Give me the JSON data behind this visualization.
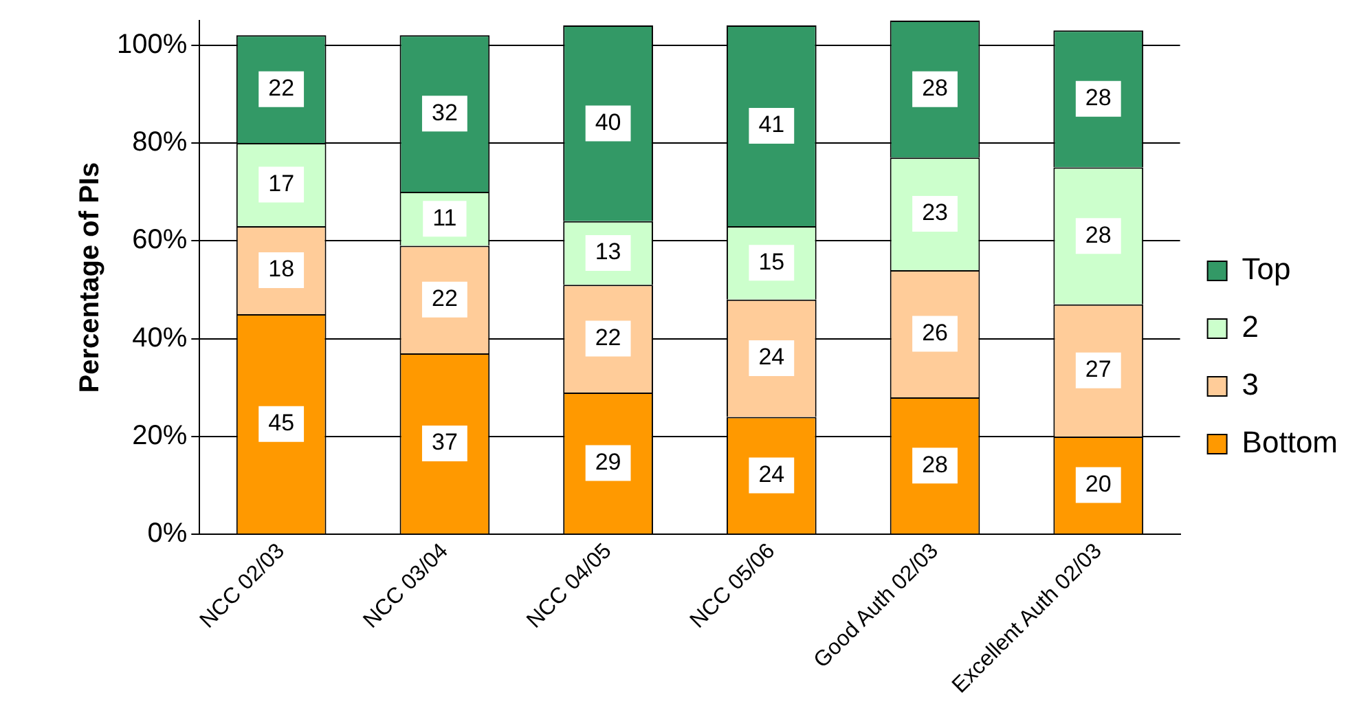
{
  "chart_data": {
    "type": "bar",
    "stacked": true,
    "ylabel": "Percentage of PIs",
    "categories": [
      "NCC 02/03",
      "NCC 03/04",
      "NCC 04/05",
      "NCC 05/06",
      "Good Auth 02/03",
      "Excellent Auth 02/03"
    ],
    "series": [
      {
        "name": "Bottom",
        "color": "#ff9900",
        "values": [
          45,
          37,
          29,
          24,
          28,
          20
        ]
      },
      {
        "name": "3",
        "color": "#ffcc99",
        "values": [
          18,
          22,
          22,
          24,
          26,
          27
        ]
      },
      {
        "name": "2",
        "color": "#ccffcc",
        "values": [
          17,
          11,
          13,
          15,
          23,
          28
        ]
      },
      {
        "name": "Top",
        "color": "#339966",
        "values": [
          22,
          32,
          40,
          41,
          28,
          28
        ]
      }
    ],
    "data_labels": true,
    "ylim": [
      0,
      105
    ],
    "yticks": [
      {
        "value": 0,
        "label": "0%"
      },
      {
        "value": 20,
        "label": "20%"
      },
      {
        "value": 40,
        "label": "40%"
      },
      {
        "value": 60,
        "label": "60%"
      },
      {
        "value": 80,
        "label": "80%"
      },
      {
        "value": 100,
        "label": "100%"
      }
    ],
    "grid": "y",
    "legend": "right"
  }
}
